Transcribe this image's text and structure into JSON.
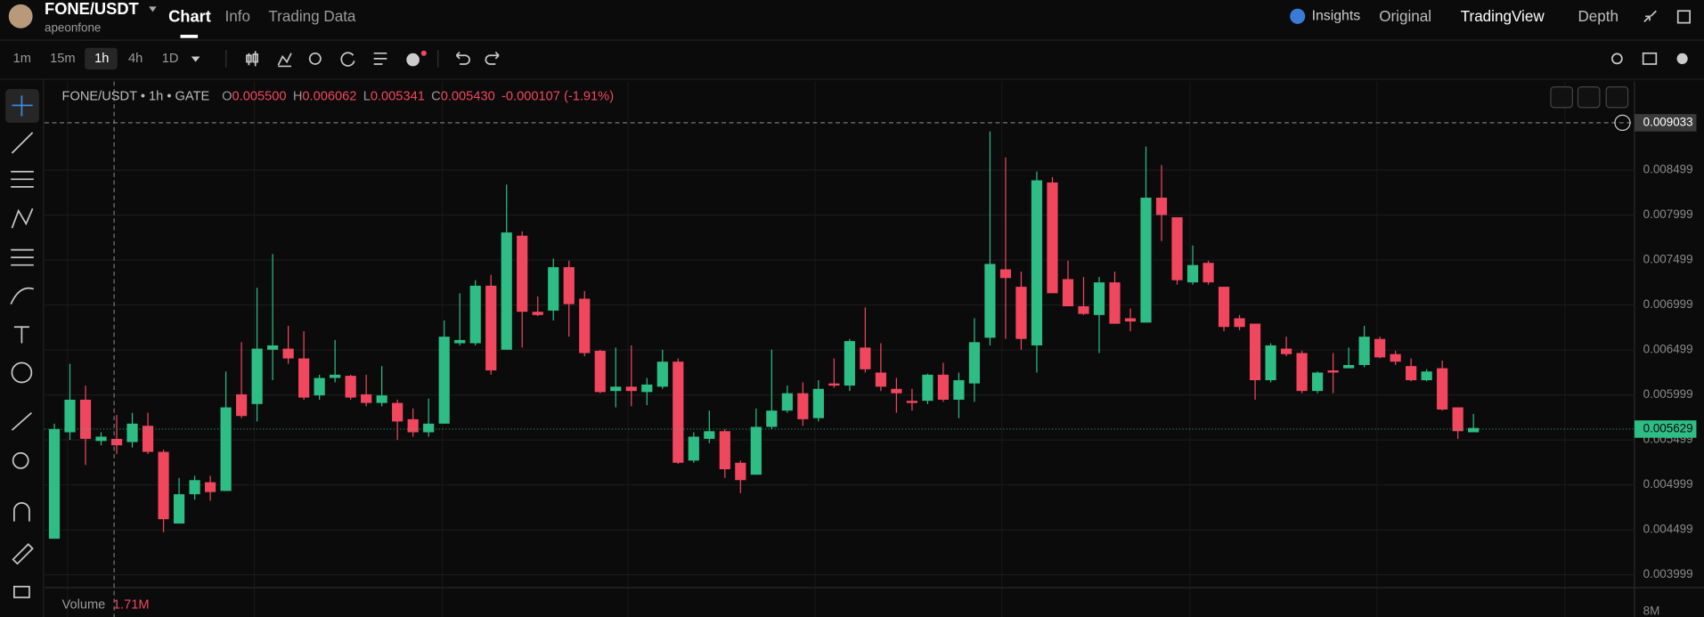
{
  "header": {
    "pair": "FONE/USDT",
    "account": "apeonfone",
    "tabs": [
      "Chart",
      "Info",
      "Trading Data"
    ],
    "right_tabs": [
      "Insights",
      "Original",
      "TradingView",
      "Depth"
    ]
  },
  "toolbar": {
    "intervals": [
      "1m",
      "15m",
      "1h",
      "4h",
      "1D"
    ]
  },
  "chart_data": {
    "type": "candlestick",
    "title": "FONE/USDT • 1h • GATE",
    "ohlc_legend": [
      {
        "key": "O",
        "value": "0.005500"
      },
      {
        "key": "H",
        "value": "0.006062"
      },
      {
        "key": "L",
        "value": "0.005341"
      },
      {
        "key": "C",
        "value": "0.005430"
      }
    ],
    "change": "-0.000107 (-1.91%)",
    "open": [
      0.0044,
      0.005584,
      0.005946,
      0.005487,
      0.005511,
      0.005475,
      0.005656,
      0.005366,
      0.004569,
      0.004895,
      0.005028,
      0.004931,
      0.006006,
      0.005898,
      0.006502,
      0.006514,
      0.006405,
      0.005994,
      0.006188,
      0.006212,
      0.006006,
      0.00591,
      0.00591,
      0.005729,
      0.005584,
      0.00568,
      0.006574,
      0.006574,
      0.007214,
      0.006502,
      0.00777,
      0.006924,
      0.006937,
      0.00742,
      0.007069,
      0.00649,
      0.006043,
      0.006091,
      0.006031,
      0.006091,
      0.006369,
      0.005269,
      0.005511,
      0.005596,
      0.005245,
      0.005112,
      0.005644,
      0.005825,
      0.006018,
      0.005741,
      0.006127,
      0.006103,
      0.006526,
      0.006248,
      0.006067,
      0.005934,
      0.005934,
      0.006224,
      0.005946,
      0.006127,
      0.006635,
      0.007396,
      0.007202,
      0.00655,
      0.008362,
      0.007287,
      0.006985,
      0.006888,
      0.007251,
      0.006852,
      0.006804,
      0.008193,
      0.007975,
      0.007251,
      0.007468,
      0.007202,
      0.006852,
      0.006792,
      0.006163,
      0.006514,
      0.006465,
      0.006043,
      0.006272,
      0.006296,
      0.006332,
      0.006622,
      0.006453,
      0.00632,
      0.006163,
      0.006296,
      0.005861,
      0.005584
    ],
    "high": [
      0.00568,
      0.006345,
      0.006103,
      0.005584,
      0.005777,
      0.005801,
      0.005801,
      0.00539,
      0.005076,
      0.0051,
      0.0051,
      0.00626,
      0.006586,
      0.00719,
      0.007565,
      0.006767,
      0.006707,
      0.006224,
      0.00661,
      0.006224,
      0.006224,
      0.00632,
      0.005946,
      0.005849,
      0.005958,
      0.006828,
      0.00713,
      0.007275,
      0.007335,
      0.008338,
      0.007818,
      0.007094,
      0.007516,
      0.007492,
      0.007154,
      0.006502,
      0.006526,
      0.00655,
      0.006188,
      0.006502,
      0.006405,
      0.005584,
      0.005825,
      0.00562,
      0.005269,
      0.005849,
      0.006502,
      0.006103,
      0.006139,
      0.006163,
      0.006405,
      0.006622,
      0.006973,
      0.006574,
      0.006188,
      0.006067,
      0.006236,
      0.006357,
      0.006248,
      0.006852,
      0.00893,
      0.00864,
      0.007371,
      0.008483,
      0.008422,
      0.007492,
      0.007311,
      0.007311,
      0.007371,
      0.006961,
      0.008761,
      0.008555,
      0.007975,
      0.007661,
      0.007492,
      0.007202,
      0.006888,
      0.006792,
      0.006574,
      0.006647,
      0.00649,
      0.00626,
      0.006465,
      0.006526,
      0.006767,
      0.006647,
      0.00649,
      0.006405,
      0.006284,
      0.006381,
      0.005861,
      0.005789
    ],
    "low": [
      0.0044,
      0.005499,
      0.005221,
      0.005439,
      0.005342,
      0.005414,
      0.005342,
      0.004472,
      0.004569,
      0.004835,
      0.004823,
      0.004931,
      0.005741,
      0.005704,
      0.006163,
      0.006345,
      0.005946,
      0.005946,
      0.006139,
      0.005946,
      0.005873,
      0.005873,
      0.005499,
      0.005535,
      0.005535,
      0.00568,
      0.00655,
      0.00655,
      0.006224,
      0.006502,
      0.006526,
      0.006876,
      0.006828,
      0.006647,
      0.006429,
      0.006018,
      0.005861,
      0.005873,
      0.005886,
      0.006067,
      0.005233,
      0.005245,
      0.005463,
      0.005076,
      0.004907,
      0.005112,
      0.00562,
      0.005801,
      0.005656,
      0.005704,
      0.006079,
      0.006043,
      0.006248,
      0.006043,
      0.005801,
      0.005825,
      0.005898,
      0.005922,
      0.005741,
      0.005922,
      0.00655,
      0.006622,
      0.006502,
      0.006248,
      0.00713,
      0.006985,
      0.006888,
      0.006465,
      0.006791,
      0.006707,
      0.006804,
      0.00771,
      0.007226,
      0.007226,
      0.007226,
      0.006707,
      0.006719,
      0.005946,
      0.006139,
      0.006429,
      0.006018,
      0.006018,
      0.006018,
      0.006296,
      0.006308,
      0.006405,
      0.006333,
      0.006151,
      0.006151,
      0.005825,
      0.005511,
      0.005584
    ],
    "close": [
      0.00562,
      0.005946,
      0.005511,
      0.005535,
      0.005439,
      0.00568,
      0.005366,
      0.004617,
      0.004895,
      0.005052,
      0.004919,
      0.005861,
      0.005765,
      0.006514,
      0.00655,
      0.006405,
      0.00597,
      0.006188,
      0.006224,
      0.00597,
      0.00591,
      0.005994,
      0.005704,
      0.005584,
      0.00568,
      0.006647,
      0.00661,
      0.007214,
      0.006272,
      0.007806,
      0.006924,
      0.006888,
      0.00742,
      0.007009,
      0.006465,
      0.006031,
      0.006091,
      0.006043,
      0.006115,
      0.006369,
      0.005245,
      0.005535,
      0.005596,
      0.005173,
      0.005052,
      0.005644,
      0.005825,
      0.006018,
      0.005729,
      0.006067,
      0.006103,
      0.006598,
      0.006284,
      0.006091,
      0.006018,
      0.00591,
      0.006224,
      0.005946,
      0.006163,
      0.006586,
      0.007456,
      0.007299,
      0.006622,
      0.008386,
      0.00713,
      0.006985,
      0.0069,
      0.007251,
      0.006791,
      0.006816,
      0.008193,
      0.008,
      0.007275,
      0.007444,
      0.007251,
      0.006755,
      0.006755,
      0.006163,
      0.00655,
      0.006453,
      0.006043,
      0.006248,
      0.006248,
      0.006332,
      0.006647,
      0.006417,
      0.006369,
      0.006163,
      0.00626,
      0.005837,
      0.005596,
      0.005632
    ],
    "up_color": "#2ebd85",
    "down_color": "#f0475f",
    "ylim": [
      0.003856,
      0.009485
    ],
    "yticks": [
      0.003999,
      0.004499,
      0.004999,
      0.005499,
      0.005999,
      0.006499,
      0.006999,
      0.007499,
      0.007999,
      0.008499
    ],
    "grid": true,
    "crosshair_price": "0.009033",
    "last_price": "0.005629",
    "volume": {
      "label": "Volume",
      "value": "1.71M",
      "axis_label": "8M"
    }
  }
}
